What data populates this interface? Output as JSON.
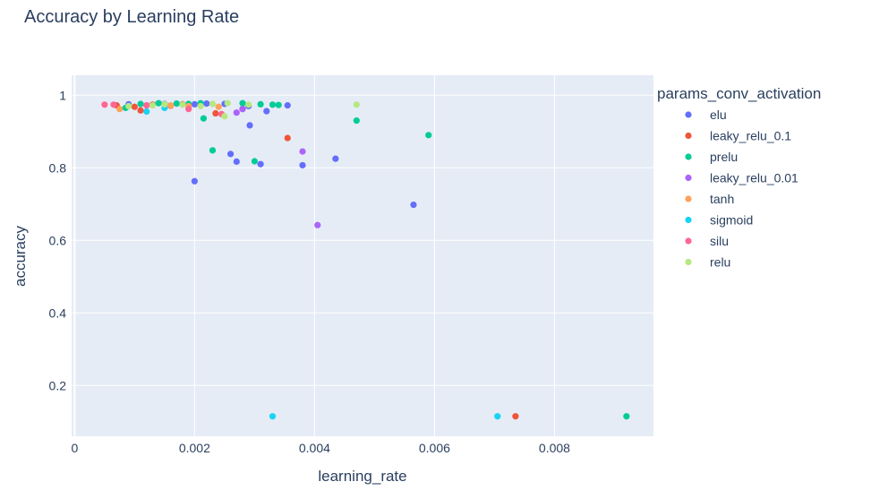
{
  "chart_data": {
    "type": "scatter",
    "title": "Accuracy by Learning Rate",
    "xlabel": "learning_rate",
    "ylabel": "accuracy",
    "xlim": [
      -5e-05,
      0.00965
    ],
    "ylim": [
      0.06,
      1.055
    ],
    "x_ticks": [
      0,
      0.002,
      0.004,
      0.006,
      0.008
    ],
    "x_tick_labels": [
      "0",
      "0.002",
      "0.004",
      "0.006",
      "0.008"
    ],
    "y_ticks": [
      0.2,
      0.4,
      0.6,
      0.8,
      1
    ],
    "y_tick_labels": [
      "0.2",
      "0.4",
      "0.6",
      "0.8",
      "1"
    ],
    "grid": true,
    "legend_title": "params_conv_activation",
    "legend_position": "right",
    "series": [
      {
        "name": "elu",
        "color": "#636efa",
        "points": [
          [
            0.0009,
            0.975
          ],
          [
            0.0012,
            0.972
          ],
          [
            0.0015,
            0.976
          ],
          [
            0.002,
            0.975
          ],
          [
            0.0022,
            0.977
          ],
          [
            0.0025,
            0.976
          ],
          [
            0.0029,
            0.97
          ],
          [
            0.0032,
            0.956
          ],
          [
            0.00355,
            0.972
          ],
          [
            0.0028,
            0.962
          ],
          [
            0.002,
            0.763
          ],
          [
            0.0026,
            0.838
          ],
          [
            0.0027,
            0.817
          ],
          [
            0.00292,
            0.917
          ],
          [
            0.0031,
            0.81
          ],
          [
            0.0038,
            0.807
          ],
          [
            0.00435,
            0.825
          ],
          [
            0.00565,
            0.698
          ]
        ]
      },
      {
        "name": "leaky_relu_0.1",
        "color": "#ef553b",
        "points": [
          [
            0.0007,
            0.972
          ],
          [
            0.001,
            0.968
          ],
          [
            0.0011,
            0.958
          ],
          [
            0.0013,
            0.974
          ],
          [
            0.0016,
            0.971
          ],
          [
            0.0018,
            0.975
          ],
          [
            0.00235,
            0.95
          ],
          [
            0.00355,
            0.882
          ],
          [
            0.00735,
            0.115
          ]
        ]
      },
      {
        "name": "prelu",
        "color": "#00cc96",
        "points": [
          [
            0.00085,
            0.965
          ],
          [
            0.0011,
            0.976
          ],
          [
            0.0014,
            0.978
          ],
          [
            0.0017,
            0.977
          ],
          [
            0.0019,
            0.976
          ],
          [
            0.0021,
            0.978
          ],
          [
            0.00215,
            0.936
          ],
          [
            0.0023,
            0.848
          ],
          [
            0.0028,
            0.978
          ],
          [
            0.003,
            0.818
          ],
          [
            0.0031,
            0.975
          ],
          [
            0.0033,
            0.974
          ],
          [
            0.0034,
            0.973
          ],
          [
            0.0047,
            0.93
          ],
          [
            0.0059,
            0.89
          ],
          [
            0.0092,
            0.115
          ]
        ]
      },
      {
        "name": "leaky_relu_0.01",
        "color": "#ab63fa",
        "points": [
          [
            0.0027,
            0.952
          ],
          [
            0.0028,
            0.962
          ],
          [
            0.0038,
            0.845
          ],
          [
            0.00405,
            0.642
          ]
        ]
      },
      {
        "name": "tanh",
        "color": "#ffa15a",
        "points": [
          [
            0.00075,
            0.962
          ],
          [
            0.0016,
            0.972
          ],
          [
            0.0024,
            0.968
          ],
          [
            0.0019,
            0.97
          ]
        ]
      },
      {
        "name": "sigmoid",
        "color": "#19d3f3",
        "points": [
          [
            0.0012,
            0.955
          ],
          [
            0.0015,
            0.965
          ],
          [
            0.0033,
            0.115
          ],
          [
            0.00705,
            0.115
          ]
        ]
      },
      {
        "name": "silu",
        "color": "#ff6692",
        "points": [
          [
            0.0005,
            0.974
          ],
          [
            0.00065,
            0.974
          ],
          [
            0.0012,
            0.972
          ],
          [
            0.0019,
            0.962
          ],
          [
            0.00245,
            0.948
          ]
        ]
      },
      {
        "name": "relu",
        "color": "#b6e880",
        "points": [
          [
            0.0009,
            0.97
          ],
          [
            0.0013,
            0.972
          ],
          [
            0.0015,
            0.975
          ],
          [
            0.0018,
            0.974
          ],
          [
            0.0021,
            0.97
          ],
          [
            0.0023,
            0.976
          ],
          [
            0.0025,
            0.942
          ],
          [
            0.00255,
            0.978
          ],
          [
            0.0029,
            0.974
          ],
          [
            0.0047,
            0.974
          ]
        ]
      }
    ]
  }
}
